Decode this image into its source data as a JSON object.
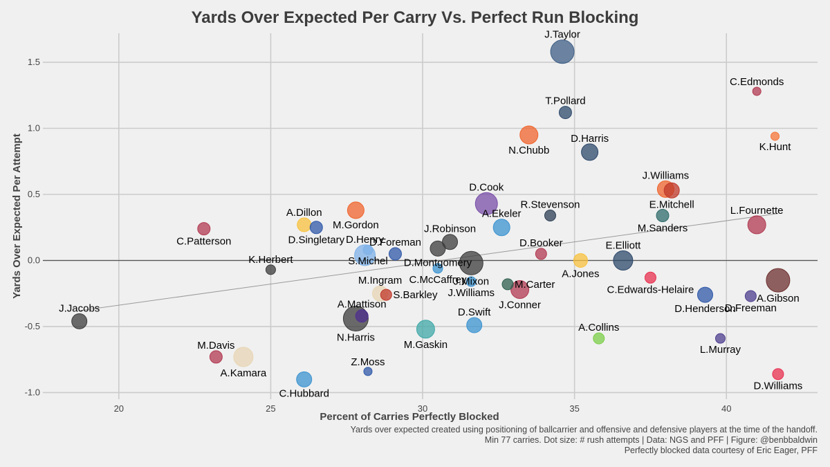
{
  "chart_data": {
    "type": "scatter",
    "title": "Yards Over Expected Per Carry Vs. Perfect Run Blocking",
    "xlabel": "Percent of Carries Perfectly Blocked",
    "ylabel": "Yards Over Expected Per Attempt",
    "xlim": [
      17.5,
      43.0
    ],
    "ylim": [
      -1.05,
      1.72
    ],
    "xticks": [
      "20",
      "25",
      "30",
      "35",
      "40"
    ],
    "yticks": [
      "-1.0",
      "-0.5",
      "0.0",
      "0.5",
      "1.0",
      "1.5"
    ],
    "grid": true,
    "zero_line": true,
    "trend_line": {
      "x": [
        18.7,
        41.7
      ],
      "y": [
        -0.38,
        0.355
      ]
    },
    "points": [
      {
        "name": "J.Taylor",
        "x": 34.6,
        "y": 1.58,
        "size": 17,
        "color": "#3f5f86",
        "label_pos": "above"
      },
      {
        "name": "C.Edmonds",
        "x": 41.0,
        "y": 1.28,
        "size": 6,
        "color": "#b23a52",
        "label_pos": "above"
      },
      {
        "name": "T.Pollard",
        "x": 34.7,
        "y": 1.12,
        "size": 9,
        "color": "#2e4a6b",
        "label_pos": "above"
      },
      {
        "name": "N.Chubb",
        "x": 33.5,
        "y": 0.95,
        "size": 13,
        "color": "#f0642d",
        "label_pos": "below"
      },
      {
        "name": "D.Harris",
        "x": 35.5,
        "y": 0.82,
        "size": 12,
        "color": "#2e4a6b",
        "label_pos": "above"
      },
      {
        "name": "K.Hunt",
        "x": 41.6,
        "y": 0.94,
        "size": 6,
        "color": "#f5753a",
        "label_pos": "below"
      },
      {
        "name": "J.Williams",
        "x": 38.0,
        "y": 0.54,
        "size": 12,
        "color": "#f0642d",
        "label_pos": "above"
      },
      {
        "name": "E.Mitchell",
        "x": 38.2,
        "y": 0.53,
        "size": 11,
        "color": "#c0392b",
        "label_pos": "below"
      },
      {
        "name": "D.Cook",
        "x": 32.1,
        "y": 0.43,
        "size": 16,
        "color": "#7a4fa8",
        "label_pos": "above"
      },
      {
        "name": "R.Stevenson",
        "x": 34.2,
        "y": 0.34,
        "size": 8,
        "color": "#2e3f55",
        "label_pos": "above"
      },
      {
        "name": "M.Sanders",
        "x": 37.9,
        "y": 0.34,
        "size": 9,
        "color": "#2f6b6b",
        "label_pos": "below"
      },
      {
        "name": "L.Fournette",
        "x": 41.0,
        "y": 0.27,
        "size": 13,
        "color": "#b23a52",
        "label_pos": "above"
      },
      {
        "name": "M.Gordon",
        "x": 27.8,
        "y": 0.38,
        "size": 12,
        "color": "#f0642d",
        "label_pos": "below"
      },
      {
        "name": "A.Dillon",
        "x": 26.1,
        "y": 0.27,
        "size": 10,
        "color": "#f8c23d",
        "label_pos": "above"
      },
      {
        "name": "D.Singletary",
        "x": 26.5,
        "y": 0.25,
        "size": 9,
        "color": "#2f58a8",
        "label_pos": "below"
      },
      {
        "name": "C.Patterson",
        "x": 22.8,
        "y": 0.24,
        "size": 9,
        "color": "#b23a52",
        "label_pos": "below"
      },
      {
        "name": "A.Ekeler",
        "x": 32.6,
        "y": 0.25,
        "size": 12,
        "color": "#3b93d0",
        "label_pos": "above"
      },
      {
        "name": "D.Foreman",
        "x": 29.1,
        "y": 0.05,
        "size": 9,
        "color": "#2f58a8",
        "label_pos": "above"
      },
      {
        "name": "J.Robinson",
        "x": 30.9,
        "y": 0.14,
        "size": 11,
        "color": "#3c3c3c",
        "label_pos": "above"
      },
      {
        "name": "D.Montgomery",
        "x": 30.5,
        "y": 0.09,
        "size": 11,
        "color": "#3c3c3c",
        "label_pos": "below"
      },
      {
        "name": "D.Henry",
        "x": 28.1,
        "y": 0.04,
        "size": 15,
        "color": "#7fb2e8",
        "label_pos": "above"
      },
      {
        "name": "S.Michel",
        "x": 28.2,
        "y": 0.08,
        "size": 7,
        "color": "#7fb2e8",
        "label_pos": "below"
      },
      {
        "name": "D.Booker",
        "x": 33.9,
        "y": 0.05,
        "size": 8,
        "color": "#b23a52",
        "label_pos": "above"
      },
      {
        "name": "A.Jones",
        "x": 35.2,
        "y": 0.0,
        "size": 10,
        "color": "#f8c23d",
        "label_pos": "below"
      },
      {
        "name": "E.Elliott",
        "x": 36.6,
        "y": 0.0,
        "size": 14,
        "color": "#2e4a6b",
        "label_pos": "above"
      },
      {
        "name": "J.Mixon",
        "x": 31.6,
        "y": -0.02,
        "size": 17,
        "color": "#3c3c3c",
        "label_pos": "below"
      },
      {
        "name": "K.Herbert",
        "x": 25.0,
        "y": -0.07,
        "size": 7,
        "color": "#3c3c3c",
        "label_pos": "above"
      },
      {
        "name": "C.McCaffrey",
        "x": 30.5,
        "y": -0.06,
        "size": 7,
        "color": "#3b93d0",
        "label_pos": "below"
      },
      {
        "name": "C.Edwards-Helaire",
        "x": 37.5,
        "y": -0.13,
        "size": 8,
        "color": "#e8304f",
        "label_pos": "below"
      },
      {
        "name": "A.Gibson",
        "x": 41.7,
        "y": -0.15,
        "size": 17,
        "color": "#6e2f2f",
        "label_pos": "below"
      },
      {
        "name": "J.Williams",
        "x": 31.6,
        "y": -0.16,
        "size": 7,
        "color": "#3b93d0",
        "label_pos": "below"
      },
      {
        "name": "M.Carter",
        "x": 32.8,
        "y": -0.18,
        "size": 8,
        "color": "#2f5f4f",
        "label_pos": "right"
      },
      {
        "name": "J.Conner",
        "x": 33.2,
        "y": -0.22,
        "size": 13,
        "color": "#b23a52",
        "label_pos": "below"
      },
      {
        "name": "M.Ingram",
        "x": 28.6,
        "y": -0.25,
        "size": 11,
        "color": "#e8d5b5",
        "label_pos": "above"
      },
      {
        "name": "S.Barkley",
        "x": 28.8,
        "y": -0.26,
        "size": 8,
        "color": "#c0392b",
        "label_pos": "right"
      },
      {
        "name": "D.Henderson",
        "x": 39.3,
        "y": -0.26,
        "size": 11,
        "color": "#2f58a8",
        "label_pos": "below"
      },
      {
        "name": "D.Freeman",
        "x": 40.8,
        "y": -0.27,
        "size": 8,
        "color": "#4f3f8f",
        "label_pos": "below"
      },
      {
        "name": "J.Jacobs",
        "x": 18.7,
        "y": -0.46,
        "size": 11,
        "color": "#3c3c3c",
        "label_pos": "above"
      },
      {
        "name": "A.Mattison",
        "x": 28.0,
        "y": -0.42,
        "size": 9,
        "color": "#4f2f8f",
        "label_pos": "above"
      },
      {
        "name": "N.Harris",
        "x": 27.8,
        "y": -0.44,
        "size": 18,
        "color": "#3c3c3c",
        "label_pos": "below"
      },
      {
        "name": "D.Swift",
        "x": 31.7,
        "y": -0.49,
        "size": 11,
        "color": "#3b93d0",
        "label_pos": "above"
      },
      {
        "name": "M.Gaskin",
        "x": 30.1,
        "y": -0.52,
        "size": 13,
        "color": "#40a8a8",
        "label_pos": "below"
      },
      {
        "name": "A.Collins",
        "x": 35.8,
        "y": -0.59,
        "size": 8,
        "color": "#7ccf4a",
        "label_pos": "above"
      },
      {
        "name": "L.Murray",
        "x": 39.8,
        "y": -0.59,
        "size": 7,
        "color": "#4f3f8f",
        "label_pos": "below"
      },
      {
        "name": "M.Davis",
        "x": 23.2,
        "y": -0.73,
        "size": 9,
        "color": "#b23a52",
        "label_pos": "above"
      },
      {
        "name": "A.Kamara",
        "x": 24.1,
        "y": -0.73,
        "size": 14,
        "color": "#e8d5b5",
        "label_pos": "below"
      },
      {
        "name": "Z.Moss",
        "x": 28.2,
        "y": -0.84,
        "size": 6,
        "color": "#2f58a8",
        "label_pos": "above"
      },
      {
        "name": "C.Hubbard",
        "x": 26.1,
        "y": -0.9,
        "size": 11,
        "color": "#3b93d0",
        "label_pos": "below"
      },
      {
        "name": "D.Williams",
        "x": 41.7,
        "y": -0.86,
        "size": 8,
        "color": "#e8304f",
        "label_pos": "below"
      }
    ]
  },
  "caption": {
    "line1": "Yards over expected created using positioning of ballcarrier and offensive and defensive players at the time of the handoff.",
    "line2": "Min 77 carries. Dot size: # rush attempts | Data: NGS and PFF | Figure: @benbbaldwin",
    "line3": "Perfectly blocked data courtesy of Eric Eager, PFF"
  }
}
